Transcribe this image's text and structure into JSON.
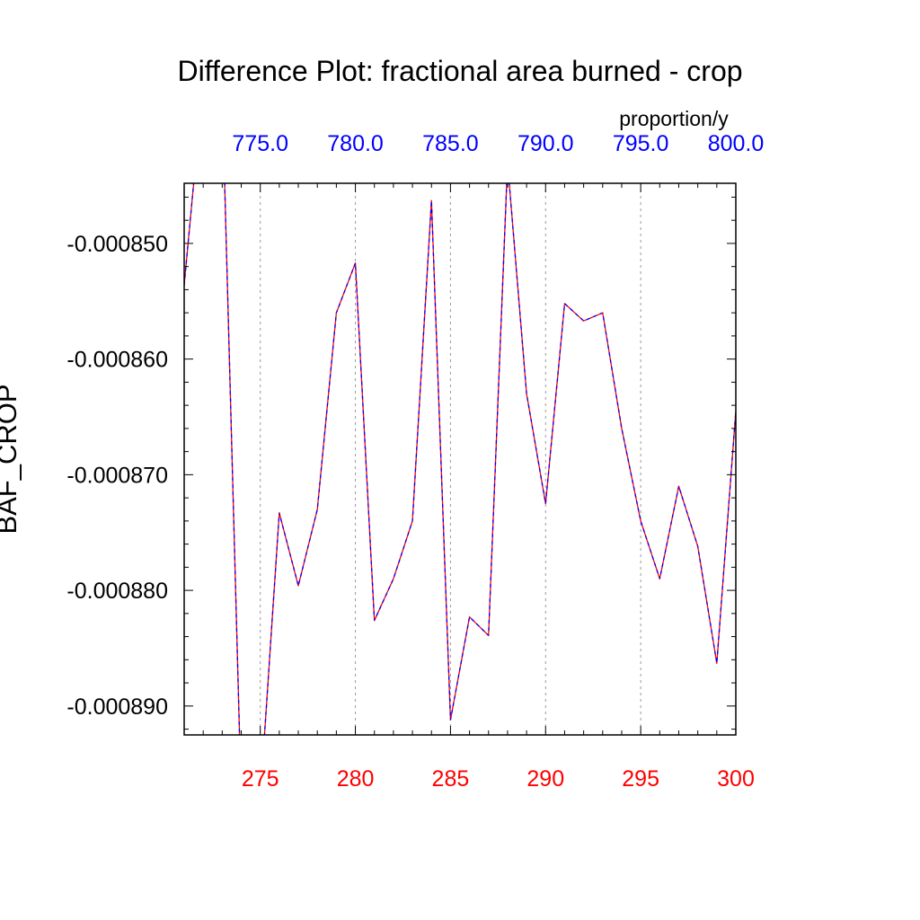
{
  "chart_data": {
    "type": "line",
    "title": "Difference Plot: fractional area burned - crop",
    "ylabel": "BAF_CROP",
    "units_label": "proportion/y",
    "xlim": [
      271,
      300
    ],
    "ylim": [
      -0.0008925,
      -0.0008448
    ],
    "grid": "vertical dashed at major x ticks",
    "bottom_axis": {
      "color": "#ff0000",
      "ticks": [
        275,
        280,
        285,
        290,
        295,
        300
      ],
      "tick_labels": [
        "275",
        "280",
        "285",
        "290",
        "295",
        "300"
      ]
    },
    "top_axis": {
      "color": "#0000ff",
      "ticks": [
        275,
        280,
        285,
        290,
        295,
        300
      ],
      "tick_labels": [
        "775.0",
        "780.0",
        "785.0",
        "790.0",
        "795.0",
        "800.0"
      ]
    },
    "left_axis": {
      "ticks": [
        -0.00085,
        -0.00086,
        -0.00087,
        -0.00088,
        -0.00089
      ],
      "tick_labels": [
        "-0.000850",
        "-0.000860",
        "-0.000870",
        "-0.000880",
        "-0.000890"
      ]
    },
    "series": [
      {
        "line_color": "#ff0000",
        "dash_color": "#0000ff",
        "x": [
          271,
          272,
          273,
          274,
          275,
          276,
          277,
          278,
          279,
          280,
          281,
          282,
          283,
          284,
          285,
          286,
          287,
          288,
          289,
          290,
          291,
          292,
          293,
          294,
          295,
          296,
          297,
          298,
          299,
          300
        ],
        "y": [
          -0.0008536,
          -0.000836,
          -0.000837,
          -0.000898,
          -0.000898,
          -0.0008733,
          -0.0008796,
          -0.000873,
          -0.000856,
          -0.0008517,
          -0.0008826,
          -0.000879,
          -0.000874,
          -0.0008463,
          -0.0008912,
          -0.0008823,
          -0.0008839,
          -0.000843,
          -0.000863,
          -0.0008725,
          -0.0008552,
          -0.0008567,
          -0.000856,
          -0.000866,
          -0.000874,
          -0.000879,
          -0.000871,
          -0.0008762,
          -0.0008863,
          -0.0008645
        ]
      }
    ]
  }
}
